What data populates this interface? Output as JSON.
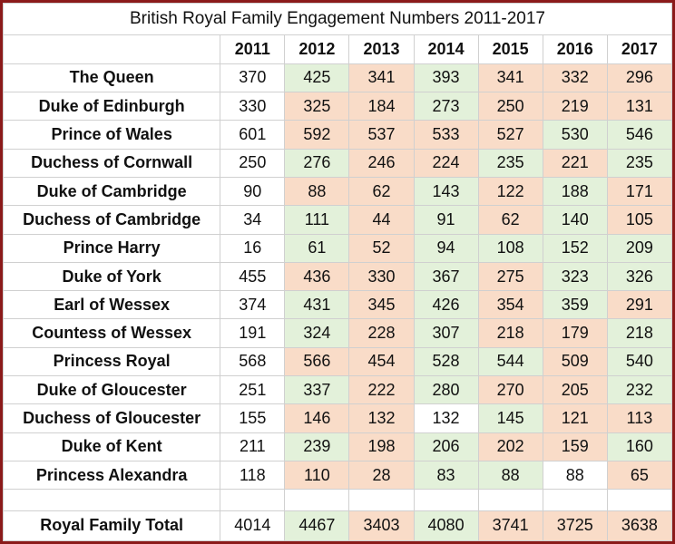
{
  "title": "British Royal Family Engagement Numbers 2011-2017",
  "table": {
    "header": [
      "2011",
      "2012",
      "2013",
      "2014",
      "2015",
      "2016",
      "2017"
    ],
    "rows": [
      {
        "label": "The Queen",
        "values": [
          370,
          425,
          341,
          393,
          341,
          332,
          296
        ]
      },
      {
        "label": "Duke of Edinburgh",
        "values": [
          330,
          325,
          184,
          273,
          250,
          219,
          131
        ]
      },
      {
        "label": "Prince of Wales",
        "values": [
          601,
          592,
          537,
          533,
          527,
          530,
          546
        ]
      },
      {
        "label": "Duchess of Cornwall",
        "values": [
          250,
          276,
          246,
          224,
          235,
          221,
          235
        ]
      },
      {
        "label": "Duke of Cambridge",
        "values": [
          90,
          88,
          62,
          143,
          122,
          188,
          171
        ]
      },
      {
        "label": "Duchess of Cambridge",
        "values": [
          34,
          111,
          44,
          91,
          62,
          140,
          105
        ]
      },
      {
        "label": "Prince Harry",
        "values": [
          16,
          61,
          52,
          94,
          108,
          152,
          209
        ]
      },
      {
        "label": "Duke of York",
        "values": [
          455,
          436,
          330,
          367,
          275,
          323,
          326
        ]
      },
      {
        "label": "Earl of Wessex",
        "values": [
          374,
          431,
          345,
          426,
          354,
          359,
          291
        ]
      },
      {
        "label": "Countess of Wessex",
        "values": [
          191,
          324,
          228,
          307,
          218,
          179,
          218
        ]
      },
      {
        "label": "Princess Royal",
        "values": [
          568,
          566,
          454,
          528,
          544,
          509,
          540
        ]
      },
      {
        "label": "Duke of Gloucester",
        "values": [
          251,
          337,
          222,
          280,
          270,
          205,
          232
        ]
      },
      {
        "label": "Duchess of Gloucester",
        "values": [
          155,
          146,
          132,
          132,
          145,
          121,
          113
        ]
      },
      {
        "label": "Duke of Kent",
        "values": [
          211,
          239,
          198,
          206,
          202,
          159,
          160
        ]
      },
      {
        "label": "Princess Alexandra",
        "values": [
          118,
          110,
          28,
          83,
          88,
          88,
          65
        ]
      }
    ],
    "total": {
      "label": "Royal Family Total",
      "values": [
        4014,
        4467,
        3403,
        4080,
        3741,
        3725,
        3638
      ]
    }
  }
}
